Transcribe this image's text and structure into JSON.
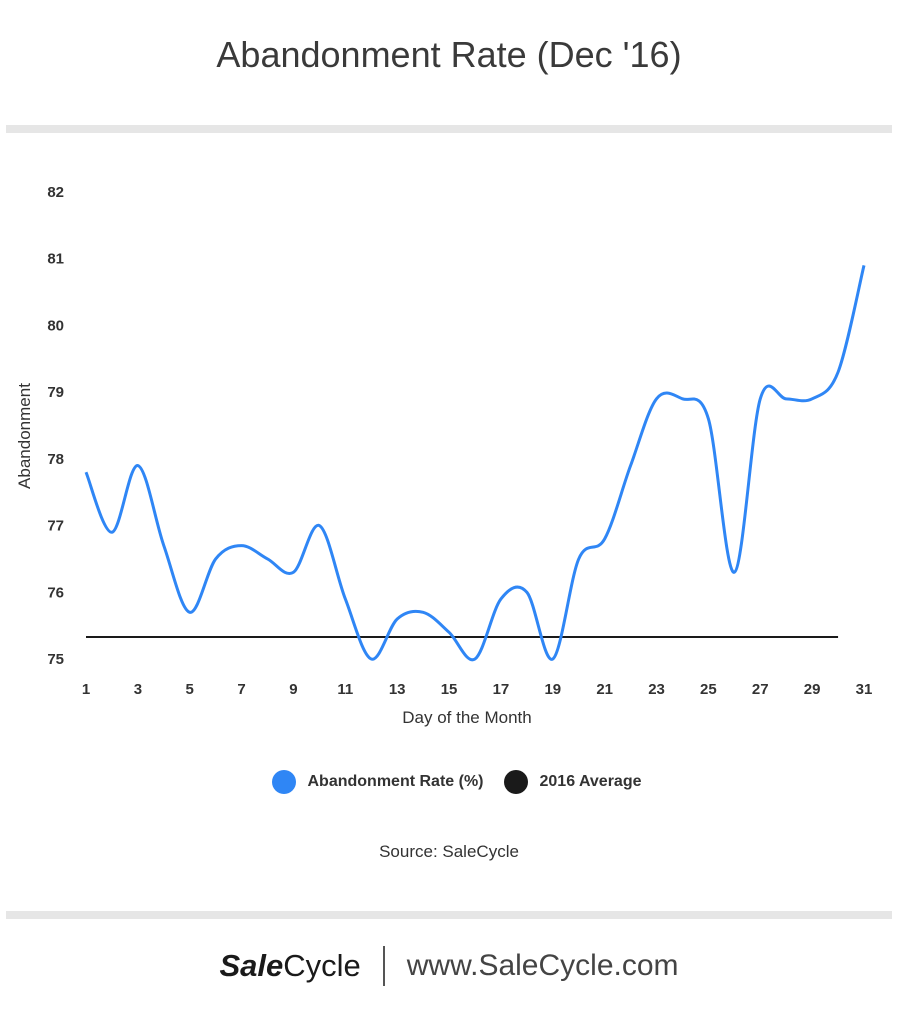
{
  "header": {
    "title": "Abandonment Rate (Dec '16)"
  },
  "chart_data": {
    "type": "line",
    "title": "Abandonment Rate (Dec '16)",
    "xlabel": "Day of the Month",
    "ylabel": "Abandonment",
    "xlim": [
      1,
      31
    ],
    "ylim": [
      75,
      82
    ],
    "x_ticks": [
      "1",
      "3",
      "5",
      "7",
      "9",
      "11",
      "13",
      "15",
      "17",
      "19",
      "21",
      "23",
      "25",
      "27",
      "29",
      "31"
    ],
    "y_ticks": [
      "75",
      "76",
      "77",
      "78",
      "79",
      "80",
      "81",
      "82"
    ],
    "grid": false,
    "legend_position": "bottom",
    "x": [
      1,
      2,
      3,
      4,
      5,
      6,
      7,
      8,
      9,
      10,
      11,
      12,
      13,
      14,
      15,
      16,
      17,
      18,
      19,
      20,
      21,
      22,
      23,
      24,
      25,
      26,
      27,
      28,
      29,
      30,
      31
    ],
    "series": [
      {
        "name": "Abandonment Rate (%)",
        "color": "#2f86f5",
        "values": [
          77.8,
          76.9,
          77.9,
          76.7,
          75.7,
          76.5,
          76.7,
          76.5,
          76.3,
          77.0,
          75.9,
          75.0,
          75.6,
          75.7,
          75.4,
          75.0,
          75.9,
          76.0,
          75.0,
          76.5,
          76.8,
          77.9,
          78.9,
          78.9,
          78.6,
          76.3,
          78.9,
          78.9,
          78.9,
          79.3,
          80.9
        ]
      },
      {
        "name": "2016 Average",
        "color": "#1a1a1a",
        "x_range": [
          1,
          30
        ],
        "value": 75.33
      }
    ]
  },
  "legend": {
    "items": [
      {
        "label": "Abandonment Rate (%)",
        "color": "#2f86f5"
      },
      {
        "label": "2016 Average",
        "color": "#1a1a1a"
      }
    ]
  },
  "source": "Source: SaleCycle",
  "footer": {
    "brand_sale": "Sale",
    "brand_cycle": "Cycle",
    "url": "www.SaleCycle.com"
  }
}
